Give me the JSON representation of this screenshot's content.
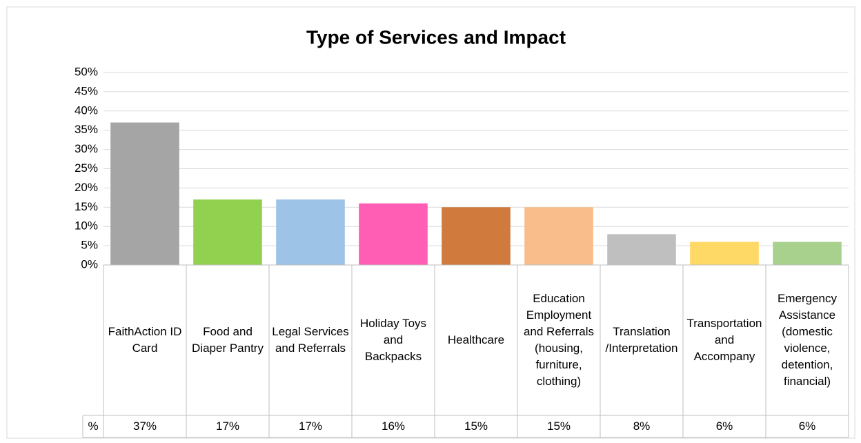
{
  "chart_data": {
    "type": "bar",
    "title": "Type of Services and Impact",
    "categories": [
      "FaithAction ID Card",
      "Food and Diaper Pantry",
      "Legal Services and Referrals",
      "Holiday Toys and Backpacks",
      "Healthcare",
      "Education Employment and Referrals (housing, furniture, clothing)",
      "Translation /Interpretation",
      "Transportation and Accompany",
      "Emergency Assistance (domestic violence, detention, financial)"
    ],
    "series": [
      {
        "name": "%",
        "colors": [
          "#a5a5a5",
          "#92d050",
          "#9dc3e6",
          "#ff5eb4",
          "#d07a3e",
          "#f8bd8a",
          "#bfbfbf",
          "#ffd966",
          "#a9d18e"
        ],
        "values": [
          37,
          17,
          17,
          16,
          15,
          15,
          8,
          6,
          6
        ],
        "value_labels": [
          "37%",
          "17%",
          "17%",
          "16%",
          "15%",
          "15%",
          "8%",
          "6%",
          "6%"
        ]
      }
    ],
    "ylim": [
      0,
      50
    ],
    "yticks": [
      {
        "value": 0,
        "label": "0%"
      },
      {
        "value": 5,
        "label": "5%"
      },
      {
        "value": 10,
        "label": "10%"
      },
      {
        "value": 15,
        "label": "15%"
      },
      {
        "value": 20,
        "label": "20%"
      },
      {
        "value": 25,
        "label": "25%"
      },
      {
        "value": 30,
        "label": "30%"
      },
      {
        "value": 35,
        "label": "35%"
      },
      {
        "value": 40,
        "label": "40%"
      },
      {
        "value": 45,
        "label": "45%"
      },
      {
        "value": 50,
        "label": "50%"
      }
    ],
    "grid": true,
    "data_table": true
  }
}
